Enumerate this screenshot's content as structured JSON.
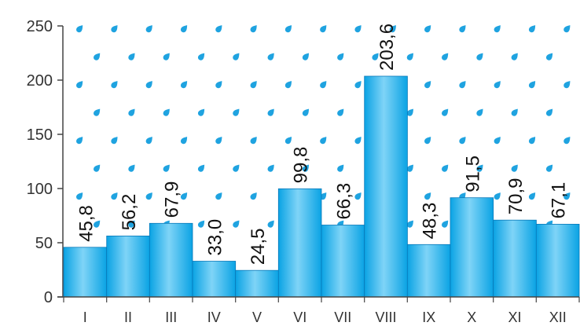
{
  "chart_data": {
    "type": "bar",
    "title": "",
    "xlabel": "",
    "ylabel": "",
    "categories": [
      "I",
      "II",
      "III",
      "IV",
      "V",
      "VI",
      "VII",
      "VIII",
      "IX",
      "X",
      "XI",
      "XII"
    ],
    "values": [
      45.8,
      56.2,
      67.9,
      33.0,
      24.5,
      99.8,
      66.3,
      203.6,
      48.3,
      91.5,
      70.9,
      67.1
    ],
    "value_labels": [
      "45,8",
      "56,2",
      "67,9",
      "33,0",
      "24,5",
      "99,8",
      "66,3",
      "203,6",
      "48,3",
      "91,5",
      "70,9",
      "67,1"
    ],
    "ylim": [
      0,
      250
    ],
    "yticks": [
      0,
      50,
      100,
      150,
      200,
      250
    ],
    "grid": false,
    "background_pattern": "raindrop-icons",
    "colors": {
      "bar": "#0aa3e4",
      "bar_highlight": "#7fd4f7",
      "bar_edge": "#0878b8",
      "raindrop": "#1fa3e0",
      "axis": "#444444"
    }
  }
}
